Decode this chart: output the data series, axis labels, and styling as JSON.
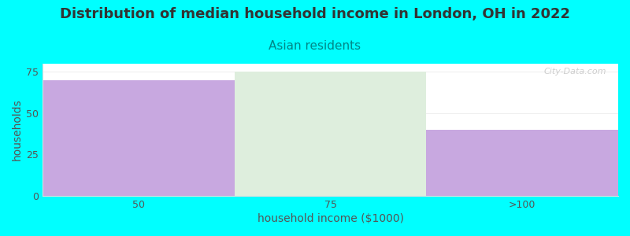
{
  "title": "Distribution of median household income in London, OH in 2022",
  "subtitle": "Asian residents",
  "xlabel": "household income ($1000)",
  "ylabel": "households",
  "categories": [
    "50",
    "75",
    ">100"
  ],
  "values": [
    70,
    75,
    40
  ],
  "bar_colors": [
    "#c8a8e0",
    "#deeedd",
    "#c8a8e0"
  ],
  "background_color": "#00ffff",
  "plot_bg_color": "#ffffff",
  "title_color": "#333333",
  "subtitle_color": "#008888",
  "axis_label_color": "#555555",
  "tick_color": "#555555",
  "ylim": [
    0,
    80
  ],
  "yticks": [
    0,
    25,
    50,
    75
  ],
  "watermark": "City-Data.com",
  "title_fontsize": 13,
  "subtitle_fontsize": 11,
  "label_fontsize": 10,
  "bar_edge_color": "none",
  "spine_color": "#cccccc"
}
